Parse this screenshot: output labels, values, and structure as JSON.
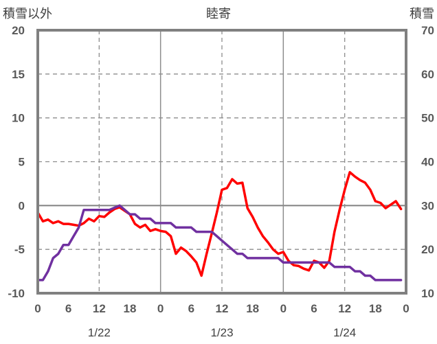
{
  "chart_data": {
    "type": "line",
    "title": "睦寄",
    "left_axis_title": "積雪以外",
    "right_axis_title": "積雪",
    "left_ylim": [
      -10,
      20
    ],
    "left_yticks": [
      "20",
      "15",
      "10",
      "5",
      "0",
      "-5",
      "-10"
    ],
    "right_ylim": [
      10,
      70
    ],
    "right_yticks": [
      "70",
      "60",
      "50",
      "40",
      "30",
      "20",
      "10"
    ],
    "xlim": [
      0,
      72
    ],
    "x_tick_labels": [
      "0",
      "6",
      "12",
      "18",
      "0",
      "6",
      "12",
      "18",
      "0",
      "6",
      "12",
      "18",
      "0"
    ],
    "date_labels": [
      "1/22",
      "1/23",
      "1/24"
    ],
    "grid": true,
    "series": [
      {
        "axis": "left",
        "color": "#ff0000",
        "x": [
          0,
          1,
          2,
          3,
          4,
          5,
          6,
          7,
          8,
          9,
          10,
          11,
          12,
          13,
          14,
          15,
          16,
          17,
          18,
          19,
          20,
          21,
          22,
          23,
          24,
          25,
          26,
          27,
          28,
          29,
          30,
          31,
          32,
          33,
          34,
          35,
          36,
          37,
          38,
          39,
          40,
          41,
          42,
          43,
          44,
          45,
          46,
          47,
          48,
          49,
          50,
          51,
          52,
          53,
          54,
          55,
          56,
          57,
          58,
          59,
          60,
          61,
          62,
          63,
          64,
          65,
          66,
          67,
          68,
          69,
          70,
          71
        ],
        "values": [
          -0.8,
          -1.8,
          -1.6,
          -2.0,
          -1.8,
          -2.1,
          -2.1,
          -2.2,
          -2.3,
          -2.0,
          -1.5,
          -1.8,
          -1.2,
          -1.3,
          -0.8,
          -0.4,
          -0.2,
          -0.6,
          -1.0,
          -2.1,
          -2.5,
          -2.2,
          -2.9,
          -2.7,
          -2.9,
          -3.0,
          -3.5,
          -5.5,
          -4.8,
          -5.2,
          -5.8,
          -6.5,
          -8.0,
          -5.5,
          -3.2,
          -0.8,
          1.8,
          2.0,
          3.0,
          2.5,
          2.6,
          -0.3,
          -1.3,
          -2.5,
          -3.5,
          -4.2,
          -5.0,
          -5.5,
          -5.3,
          -6.3,
          -6.8,
          -6.9,
          -7.2,
          -7.4,
          -6.3,
          -6.5,
          -7.1,
          -6.3,
          -3.0,
          -0.5,
          1.8,
          3.8,
          3.3,
          2.9,
          2.6,
          1.8,
          0.5,
          0.3,
          -0.3,
          0.1,
          0.5,
          -0.4
        ]
      },
      {
        "axis": "right",
        "color": "#7030a0",
        "x": [
          0,
          1,
          2,
          3,
          4,
          5,
          6,
          7,
          8,
          9,
          10,
          11,
          12,
          13,
          14,
          15,
          16,
          17,
          18,
          19,
          20,
          21,
          22,
          23,
          24,
          25,
          26,
          27,
          28,
          29,
          30,
          31,
          32,
          33,
          34,
          35,
          36,
          37,
          38,
          39,
          40,
          41,
          42,
          43,
          44,
          45,
          46,
          47,
          48,
          49,
          50,
          51,
          52,
          53,
          54,
          55,
          56,
          57,
          58,
          59,
          60,
          61,
          62,
          63,
          64,
          65,
          66,
          67,
          68,
          69,
          70,
          71
        ],
        "values": [
          13,
          13,
          15,
          18,
          19,
          21,
          21,
          23,
          25,
          29,
          29,
          29,
          29,
          29,
          29,
          29.5,
          30,
          29,
          28,
          28,
          27,
          27,
          27,
          26,
          26,
          26,
          26,
          25,
          25,
          25,
          25,
          24,
          24,
          24,
          24,
          23,
          22,
          21,
          20,
          19,
          19,
          18,
          18,
          18,
          18,
          18,
          18,
          18,
          17,
          17,
          17,
          17,
          17,
          17,
          17,
          17,
          17,
          17,
          16,
          16,
          16,
          16,
          15,
          15,
          14,
          14,
          13,
          13,
          13,
          13,
          13,
          13
        ]
      }
    ]
  }
}
